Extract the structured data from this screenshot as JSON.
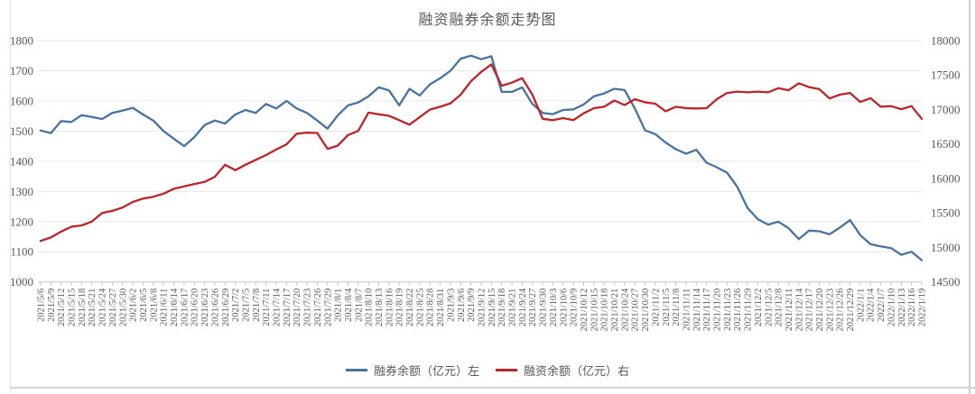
{
  "chart_data": {
    "type": "line",
    "title": "融资融券余额走势图",
    "grid": true,
    "legend_position": "bottom",
    "colors": {
      "series_left": "#4673A0",
      "series_right": "#BE2328",
      "gridline": "#e7e7e7",
      "axis": "#c6c6c6",
      "text": "#595959"
    },
    "legend": [
      {
        "label": "融券余额（亿元）左",
        "color": "#4673A0"
      },
      {
        "label": "融资余额（亿元）右",
        "color": "#BE2328"
      }
    ],
    "y_left": {
      "min": 1000,
      "max": 1800,
      "step": 100,
      "ticks": [
        "1800",
        "1700",
        "1600",
        "1500",
        "1400",
        "1300",
        "1200",
        "1100",
        "1000"
      ]
    },
    "y_right": {
      "min": 14500,
      "max": 18000,
      "step": 500,
      "ticks": [
        "18000",
        "17500",
        "17000",
        "16500",
        "16000",
        "15500",
        "15000",
        "14500"
      ]
    },
    "x_labels": [
      "2021/5/6",
      "2021/5/9",
      "2021/5/12",
      "2021/5/15",
      "2021/5/18",
      "2021/5/21",
      "2021/5/24",
      "2021/5/27",
      "2021/5/30",
      "2021/6/2",
      "2021/6/5",
      "2021/6/8",
      "2021/6/11",
      "2021/6/14",
      "2021/6/17",
      "2021/6/20",
      "2021/6/23",
      "2021/6/26",
      "2021/6/29",
      "2021/7/2",
      "2021/7/5",
      "2021/7/8",
      "2021/7/11",
      "2021/7/14",
      "2021/7/17",
      "2021/7/20",
      "2021/7/23",
      "2021/7/26",
      "2021/7/29",
      "2021/8/1",
      "2021/8/4",
      "2021/8/7",
      "2021/8/10",
      "2021/8/13",
      "2021/8/16",
      "2021/8/19",
      "2021/8/22",
      "2021/8/25",
      "2021/8/28",
      "2021/8/31",
      "2021/9/3",
      "2021/9/6",
      "2021/9/9",
      "2021/9/12",
      "2021/9/15",
      "2021/9/18",
      "2021/9/21",
      "2021/9/24",
      "2021/9/27",
      "2021/9/30",
      "2021/10/3",
      "2021/10/6",
      "2021/10/9",
      "2021/10/12",
      "2021/10/15",
      "2021/10/18",
      "2021/10/21",
      "2021/10/24",
      "2021/10/27",
      "2021/10/30",
      "2021/11/2",
      "2021/11/5",
      "2021/11/8",
      "2021/11/11",
      "2021/11/14",
      "2021/11/17",
      "2021/11/20",
      "2021/11/23",
      "2021/11/26",
      "2021/11/29",
      "2021/12/2",
      "2021/12/5",
      "2021/12/8",
      "2021/12/11",
      "2021/12/14",
      "2021/12/17",
      "2021/12/20",
      "2021/12/23",
      "2021/12/26",
      "2021/12/29",
      "2022/1/1",
      "2022/1/4",
      "2022/1/7",
      "2022/1/10",
      "2022/1/13",
      "2022/1/16",
      "2022/1/19"
    ],
    "series": [
      {
        "name": "融券余额（亿元）左",
        "axis": "left",
        "color": "#4673A0",
        "values": [
          1502,
          1493,
          1533,
          1530,
          1553,
          1547,
          1540,
          1560,
          1568,
          1577,
          1555,
          1535,
          1500,
          1475,
          1450,
          1480,
          1520,
          1535,
          1525,
          1555,
          1570,
          1560,
          1590,
          1575,
          1600,
          1575,
          1560,
          1535,
          1508,
          1552,
          1585,
          1595,
          1615,
          1645,
          1635,
          1585,
          1640,
          1618,
          1655,
          1675,
          1700,
          1740,
          1750,
          1738,
          1748,
          1630,
          1630,
          1645,
          1590,
          1560,
          1556,
          1570,
          1572,
          1588,
          1615,
          1625,
          1640,
          1636,
          1575,
          1502,
          1490,
          1462,
          1440,
          1425,
          1438,
          1395,
          1380,
          1362,
          1315,
          1245,
          1208,
          1190,
          1200,
          1178,
          1142,
          1170,
          1168,
          1158,
          1180,
          1205,
          1155,
          1125,
          1118,
          1112,
          1090,
          1100,
          1072
        ]
      },
      {
        "name": "融资余额（亿元）右",
        "axis": "right",
        "color": "#BE2328",
        "values": [
          15095,
          15145,
          15230,
          15300,
          15320,
          15375,
          15500,
          15530,
          15580,
          15660,
          15710,
          15735,
          15780,
          15850,
          15885,
          15920,
          15950,
          16025,
          16200,
          16120,
          16200,
          16270,
          16340,
          16420,
          16495,
          16650,
          16665,
          16660,
          16430,
          16475,
          16630,
          16690,
          16955,
          16930,
          16910,
          16845,
          16780,
          16890,
          17000,
          17040,
          17090,
          17215,
          17410,
          17545,
          17655,
          17345,
          17390,
          17455,
          17215,
          16865,
          16845,
          16875,
          16845,
          16945,
          17020,
          17040,
          17130,
          17065,
          17150,
          17105,
          17085,
          16975,
          17040,
          17020,
          17015,
          17020,
          17150,
          17240,
          17260,
          17250,
          17260,
          17250,
          17310,
          17280,
          17380,
          17325,
          17295,
          17160,
          17215,
          17240,
          17110,
          17165,
          17040,
          17050,
          17005,
          17050,
          16865
        ]
      }
    ]
  }
}
